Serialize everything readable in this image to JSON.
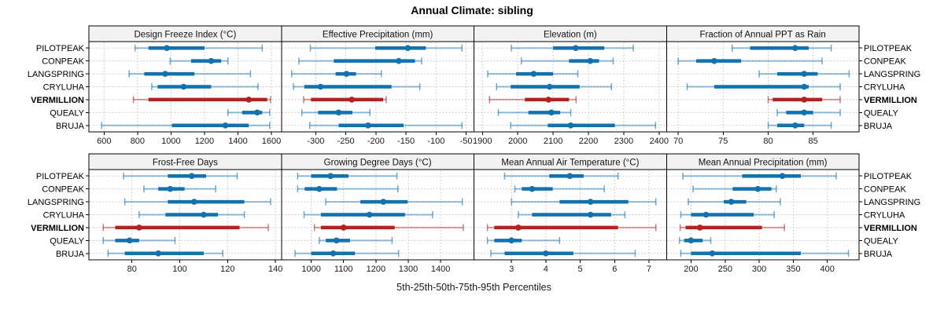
{
  "title": "Annual Climate: sibling",
  "footer": "5th-25th-50th-75th-95th Percentiles",
  "sites": [
    "PILOTPEAK",
    "CONPEAK",
    "LANGSPRING",
    "CRYLUHA",
    "VERMILLION",
    "QUEALY",
    "BRUJA"
  ],
  "highlight_site": "VERMILLION",
  "colors": {
    "site_blue": "#1272b0",
    "highlight_red": "#b22222",
    "header_bg": "#f2f2f2",
    "panel_border": "#000000",
    "grid": "#c4c4c4",
    "text": "#1a1a1a"
  },
  "chart_data": {
    "type": "percentile-interval-trellis (horizontal boxplot-style dot-whisker panels)",
    "percentiles": [
      5,
      25,
      50,
      75,
      95
    ],
    "caption": "5th-25th-50th-75th-95th Percentiles",
    "grid": "dotted",
    "panels": [
      {
        "title": "Design Freeze Index (°C)",
        "row": 0,
        "col": 0,
        "xlim": [
          509,
          1660
        ],
        "xticks": [
          600,
          800,
          1000,
          1200,
          1400,
          1600
        ],
        "series": [
          {
            "name": "PILOTPEAK",
            "values": [
              785,
              865,
              975,
              1200,
              1545
            ]
          },
          {
            "name": "CONPEAK",
            "values": [
              995,
              1120,
              1240,
              1300,
              1340
            ]
          },
          {
            "name": "LANGSPRING",
            "values": [
              750,
              840,
              965,
              1140,
              1475
            ]
          },
          {
            "name": "CRYLUHA",
            "values": [
              885,
              920,
              1075,
              1240,
              1520
            ]
          },
          {
            "name": "VERMILLION",
            "values": [
              775,
              865,
              1465,
              1575,
              1595
            ]
          },
          {
            "name": "QUEALY",
            "values": [
              1340,
              1425,
              1515,
              1545,
              1590
            ]
          },
          {
            "name": "BRUJA",
            "values": [
              585,
              1005,
              1325,
              1465,
              1590
            ]
          }
        ]
      },
      {
        "title": "Effective Precipitation (mm)",
        "row": 0,
        "col": 1,
        "xlim": [
          -357,
          -37
        ],
        "xticks": [
          -300,
          -250,
          -200,
          -150,
          -100,
          -50
        ],
        "series": [
          {
            "name": "PILOTPEAK",
            "values": [
              -309,
              -201,
              -147,
              -117,
              -57
            ]
          },
          {
            "name": "CONPEAK",
            "values": [
              -328,
              -270,
              -162,
              -135,
              -124
            ]
          },
          {
            "name": "LANGSPRING",
            "values": [
              -340,
              -267,
              -249,
              -233,
              -191
            ]
          },
          {
            "name": "CRYLUHA",
            "values": [
              -337,
              -319,
              -292,
              -174,
              -127
            ]
          },
          {
            "name": "VERMILLION",
            "values": [
              -320,
              -308,
              -240,
              -188,
              -183
            ]
          },
          {
            "name": "QUEALY",
            "values": [
              -323,
              -296,
              -262,
              -239,
              -210
            ]
          },
          {
            "name": "BRUJA",
            "values": [
              -310,
              -262,
              -213,
              -154,
              -57
            ]
          }
        ]
      },
      {
        "title": "Elevation (m)",
        "row": 0,
        "col": 2,
        "xlim": [
          1876,
          2421
        ],
        "xticks": [
          1900,
          2000,
          2100,
          2200,
          2300,
          2400
        ],
        "series": [
          {
            "name": "PILOTPEAK",
            "values": [
              1982,
              2100,
              2164,
              2245,
              2327
            ]
          },
          {
            "name": "CONPEAK",
            "values": [
              2010,
              2145,
              2205,
              2230,
              2270
            ]
          },
          {
            "name": "LANGSPRING",
            "values": [
              1915,
              1995,
              2045,
              2100,
              2170
            ]
          },
          {
            "name": "CRYLUHA",
            "values": [
              1940,
              1980,
              2090,
              2175,
              2265
            ]
          },
          {
            "name": "VERMILLION",
            "values": [
              1920,
              2020,
              2087,
              2145,
              2165
            ]
          },
          {
            "name": "QUEALY",
            "values": [
              1945,
              2030,
              2095,
              2120,
              2150
            ]
          },
          {
            "name": "BRUJA",
            "values": [
              1980,
              2085,
              2150,
              2275,
              2390
            ]
          }
        ]
      },
      {
        "title": "Fraction of Annual PPT as Rain",
        "row": 0,
        "col": 3,
        "xlim": [
          68.7,
          90.1
        ],
        "xticks": [
          70,
          75,
          80,
          85
        ],
        "series": [
          {
            "name": "PILOTPEAK",
            "values": [
              76,
              78,
              83,
              84.5,
              87
            ]
          },
          {
            "name": "CONPEAK",
            "values": [
              70,
              72,
              74,
              77,
              86
            ]
          },
          {
            "name": "LANGSPRING",
            "values": [
              79,
              81,
              84,
              85.5,
              89
            ]
          },
          {
            "name": "CRYLUHA",
            "values": [
              71,
              74,
              84,
              84.5,
              88
            ]
          },
          {
            "name": "VERMILLION",
            "values": [
              80,
              80.5,
              84,
              86,
              88
            ]
          },
          {
            "name": "QUEALY",
            "values": [
              81,
              82,
              84,
              85,
              88
            ]
          },
          {
            "name": "BRUJA",
            "values": [
              80,
              81,
              83,
              84,
              87
            ]
          }
        ]
      },
      {
        "title": "Frost-Free Days",
        "row": 1,
        "col": 0,
        "xlim": [
          62,
          142.5
        ],
        "xticks": [
          80,
          100,
          120,
          140
        ],
        "series": [
          {
            "name": "PILOTPEAK",
            "values": [
              76.5,
              95,
              105,
              111,
              124
            ]
          },
          {
            "name": "CONPEAK",
            "values": [
              85,
              91,
              96,
              102,
              115
            ]
          },
          {
            "name": "LANGSPRING",
            "values": [
              77,
              95,
              106,
              127,
              138
            ]
          },
          {
            "name": "CRYLUHA",
            "values": [
              83,
              94,
              110,
              116,
              127
            ]
          },
          {
            "name": "VERMILLION",
            "values": [
              68,
              73,
              83,
              125,
              137
            ]
          },
          {
            "name": "QUEALY",
            "values": [
              68,
              73,
              79,
              83,
              98
            ]
          },
          {
            "name": "BRUJA",
            "values": [
              70,
              77,
              91,
              110,
              118
            ]
          }
        ]
      },
      {
        "title": "Growing Degree Days (°C)",
        "row": 1,
        "col": 1,
        "xlim": [
          908,
          1503
        ],
        "xticks": [
          1000,
          1100,
          1200,
          1300,
          1400
        ],
        "series": [
          {
            "name": "PILOTPEAK",
            "values": [
              958,
              1000,
              1060,
              1115,
              1265
            ]
          },
          {
            "name": "CONPEAK",
            "values": [
              958,
              980,
              1025,
              1080,
              1268
            ]
          },
          {
            "name": "LANGSPRING",
            "values": [
              1045,
              1152,
              1223,
              1298,
              1467
            ]
          },
          {
            "name": "CRYLUHA",
            "values": [
              978,
              1030,
              1180,
              1290,
              1375
            ]
          },
          {
            "name": "VERMILLION",
            "values": [
              1010,
              1030,
              1100,
              1258,
              1470
            ]
          },
          {
            "name": "QUEALY",
            "values": [
              1025,
              1045,
              1078,
              1120,
              1250
            ]
          },
          {
            "name": "BRUJA",
            "values": [
              950,
              1000,
              1068,
              1135,
              1270
            ]
          }
        ]
      },
      {
        "title": "Mean Annual Air Temperature (°C)",
        "row": 1,
        "col": 2,
        "xlim": [
          1.91,
          7.51
        ],
        "xticks": [
          3,
          4,
          5,
          6,
          7
        ],
        "series": [
          {
            "name": "PILOTPEAK",
            "values": [
              2.8,
              4.1,
              4.7,
              5.1,
              6.1
            ]
          },
          {
            "name": "CONPEAK",
            "values": [
              3.1,
              3.3,
              3.6,
              4.2,
              5.7
            ]
          },
          {
            "name": "LANGSPRING",
            "values": [
              3.0,
              4.4,
              5.3,
              6.4,
              7.2
            ]
          },
          {
            "name": "CRYLUHA",
            "values": [
              3.2,
              3.6,
              5.3,
              5.9,
              6.3
            ]
          },
          {
            "name": "VERMILLION",
            "values": [
              2.3,
              2.5,
              3.2,
              6.1,
              7.2
            ]
          },
          {
            "name": "QUEALY",
            "values": [
              2.3,
              2.5,
              3.0,
              3.3,
              4.4
            ]
          },
          {
            "name": "BRUJA",
            "values": [
              2.4,
              2.8,
              4.0,
              4.8,
              6.6
            ]
          }
        ]
      },
      {
        "title": "Mean Annual Precipitation (mm)",
        "row": 1,
        "col": 3,
        "xlim": [
          164,
          446.5
        ],
        "xticks": [
          200,
          250,
          300,
          350,
          400
        ],
        "series": [
          {
            "name": "PILOTPEAK",
            "values": [
              188,
              275,
              334,
              361,
              413
            ]
          },
          {
            "name": "CONPEAK",
            "values": [
              203,
              261,
              298,
              318,
              325
            ]
          },
          {
            "name": "LANGSPRING",
            "values": [
              196,
              248,
              259,
              281,
              331
            ]
          },
          {
            "name": "CRYLUHA",
            "values": [
              185,
              200,
              222,
              292,
              322
            ]
          },
          {
            "name": "VERMILLION",
            "values": [
              184,
              192,
              213,
              304,
              337
            ]
          },
          {
            "name": "QUEALY",
            "values": [
              183,
              190,
              200,
              217,
              229
            ]
          },
          {
            "name": "BRUJA",
            "values": [
              185,
              200,
              231,
              361,
              431
            ]
          }
        ]
      }
    ]
  }
}
